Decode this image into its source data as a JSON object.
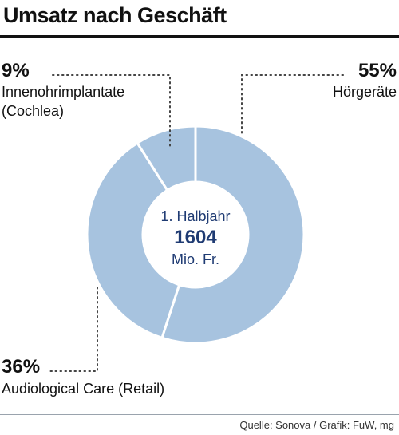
{
  "chart_data": {
    "type": "pie",
    "title": "Umsatz nach Geschäft",
    "center": {
      "line1": "1. Halbjahr",
      "value": "1604",
      "unit": "Mio. Fr."
    },
    "categories": [
      "Hörgeräte",
      "Audiological Care (Retail)",
      "Innenohrimplantate (Cochlea)"
    ],
    "values": [
      55,
      36,
      9
    ],
    "labels": [
      {
        "pct": "55%",
        "lines": [
          "Hörgeräte"
        ]
      },
      {
        "pct": "36%",
        "lines": [
          "Audiological Care (Retail)"
        ]
      },
      {
        "pct": "9%",
        "lines": [
          "Innenohrimplantate",
          "(Cochlea)"
        ]
      }
    ],
    "slice_color": "#a7c3df",
    "separator_color": "#ffffff",
    "center_text_color": "#1f3b73"
  },
  "source": "Quelle: Sonova / Grafik: FuW, mg"
}
